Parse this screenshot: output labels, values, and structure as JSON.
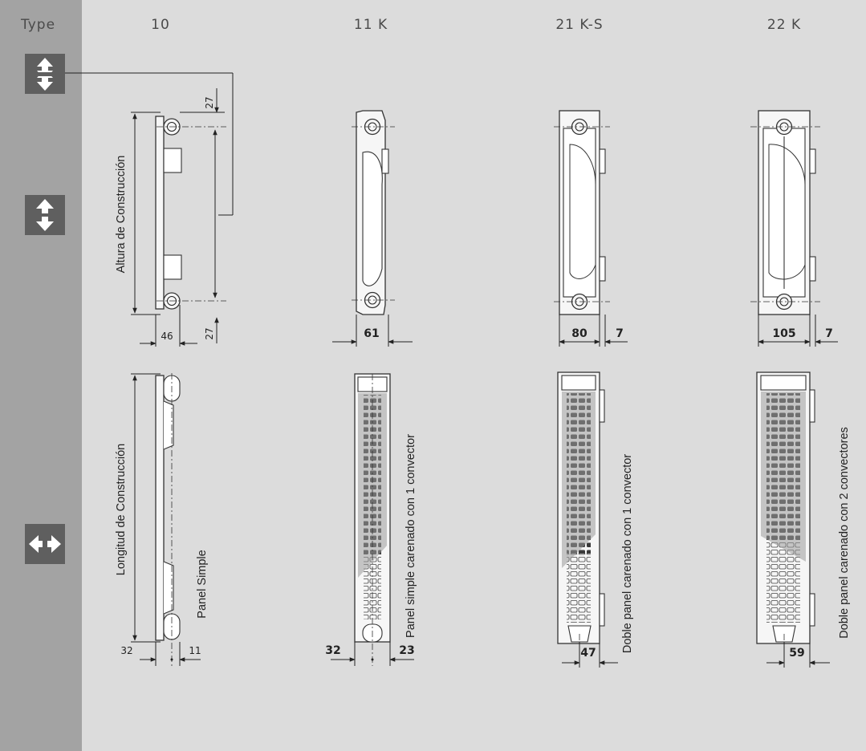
{
  "header": {
    "type_label": "Type",
    "columns": [
      "10",
      "11 K",
      "21 K-S",
      "22 K"
    ]
  },
  "sidebar": {
    "icons": [
      "double-vertical-arrows-icon",
      "vertical-arrows-icon",
      "horizontal-arrows-icon"
    ]
  },
  "side_view": {
    "axis_label": "Altura de Construcción",
    "dim_top": "27",
    "dim_bottom": "27",
    "widths": [
      "46",
      "61",
      "80",
      "105"
    ],
    "offsets": [
      "7",
      "7"
    ]
  },
  "front_view": {
    "axis_label": "Longitud de Construcción",
    "labels": [
      "Panel Simple",
      "Panel simple carenado con 1 convector",
      "Doble panel carenado con 1 convector",
      "Doble panel carenado con 2 convectores"
    ],
    "dims_10": [
      "32",
      "11"
    ],
    "dims_11k": [
      "32",
      "23"
    ],
    "dim_21ks": "47",
    "dim_22k": "59"
  },
  "colors": {
    "sidebar": "#a3a3a3",
    "content": "#dcdcdc",
    "icon_bg": "#5f5f5f",
    "line": "#222222"
  }
}
